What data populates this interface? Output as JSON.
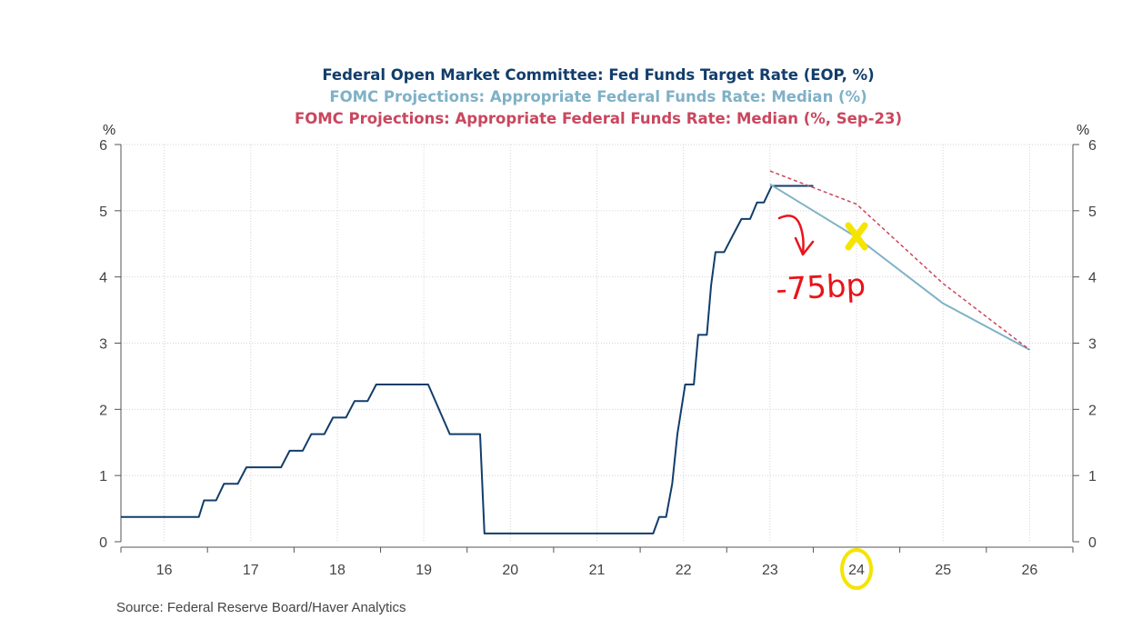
{
  "chart_data": {
    "type": "line",
    "titles": [
      {
        "text": "Federal Open Market Committee: Fed Funds Target Rate (EOP, %)",
        "color": "#123d6b"
      },
      {
        "text": "FOMC Projections: Appropriate Federal Funds Rate: Median (%)",
        "color": "#7fb1c6"
      },
      {
        "text": "FOMC Projections: Appropriate Federal Funds Rate: Median (%, Sep-23)",
        "color": "#c9475e"
      }
    ],
    "y_unit_left": "%",
    "y_unit_right": "%",
    "ylim": [
      0,
      6
    ],
    "y_ticks": [
      "0",
      "1",
      "2",
      "3",
      "4",
      "5",
      "6"
    ],
    "x_tick_labels": [
      "16",
      "17",
      "18",
      "19",
      "20",
      "21",
      "22",
      "23",
      "24",
      "25",
      "26"
    ],
    "xlim": [
      2015.5,
      2026.5
    ],
    "grid": true,
    "series": [
      {
        "key": "target",
        "color": "#123d6b",
        "dashed": false,
        "points": [
          [
            2015.5,
            0.375
          ],
          [
            2016.4,
            0.375
          ],
          [
            2016.46,
            0.625
          ],
          [
            2016.6,
            0.625
          ],
          [
            2016.69,
            0.875
          ],
          [
            2016.85,
            0.875
          ],
          [
            2016.95,
            1.125
          ],
          [
            2017.35,
            1.125
          ],
          [
            2017.45,
            1.375
          ],
          [
            2017.6,
            1.375
          ],
          [
            2017.7,
            1.625
          ],
          [
            2017.85,
            1.625
          ],
          [
            2017.95,
            1.875
          ],
          [
            2018.1,
            1.875
          ],
          [
            2018.2,
            2.125
          ],
          [
            2018.35,
            2.125
          ],
          [
            2018.45,
            2.375
          ],
          [
            2019.05,
            2.375
          ],
          [
            2019.3,
            1.625
          ],
          [
            2019.65,
            1.625
          ],
          [
            2019.7,
            0.125
          ],
          [
            2021.65,
            0.125
          ],
          [
            2021.72,
            0.375
          ],
          [
            2021.8,
            0.375
          ],
          [
            2021.87,
            0.875
          ],
          [
            2021.93,
            1.625
          ],
          [
            2022.02,
            2.375
          ],
          [
            2022.12,
            2.375
          ],
          [
            2022.17,
            3.125
          ],
          [
            2022.27,
            3.125
          ],
          [
            2022.32,
            3.875
          ],
          [
            2022.37,
            4.375
          ],
          [
            2022.47,
            4.375
          ],
          [
            2022.57,
            4.625
          ],
          [
            2022.67,
            4.875
          ],
          [
            2022.77,
            4.875
          ],
          [
            2022.85,
            5.125
          ],
          [
            2022.93,
            5.125
          ],
          [
            2023.02,
            5.375
          ],
          [
            2023.5,
            5.375
          ]
        ]
      },
      {
        "key": "projection",
        "color": "#7fb1c6",
        "dashed": false,
        "points": [
          [
            2023.0,
            5.4
          ],
          [
            2024.0,
            4.6
          ],
          [
            2025.0,
            3.6
          ],
          [
            2026.0,
            2.9
          ]
        ]
      },
      {
        "key": "projection_sep23",
        "color": "#c9475e",
        "dashed": true,
        "points": [
          [
            2023.0,
            5.6
          ],
          [
            2024.0,
            5.1
          ],
          [
            2025.0,
            3.9
          ],
          [
            2026.0,
            2.9
          ]
        ]
      }
    ],
    "annotations": [
      {
        "type": "arrow",
        "color": "#e8141b"
      },
      {
        "type": "text",
        "text": "-75bp",
        "color": "#e8141b"
      },
      {
        "type": "x-mark",
        "color": "#f5e400"
      },
      {
        "type": "circle",
        "target": "24",
        "color": "#f5e400"
      }
    ]
  },
  "source": "Source:  Federal Reserve Board/Haver Analytics"
}
